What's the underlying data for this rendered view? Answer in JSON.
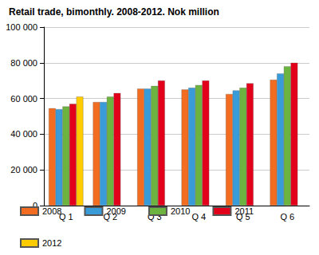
{
  "chart_data": {
    "type": "bar",
    "title": "Retail trade, bimonthly. 2008-2012. Nok million",
    "categories": [
      "Q 1",
      "Q 2",
      "Q 3",
      "Q 4",
      "Q 5",
      "Q 6"
    ],
    "series": [
      {
        "name": "2008",
        "color": "#f26d21",
        "values": [
          54500,
          58000,
          65500,
          65000,
          62500,
          70500
        ]
      },
      {
        "name": "2009",
        "color": "#3a9bd9",
        "values": [
          54000,
          58000,
          65500,
          66000,
          64500,
          74000
        ]
      },
      {
        "name": "2010",
        "color": "#6cb33f",
        "values": [
          55500,
          61000,
          67000,
          67500,
          66000,
          78000
        ]
      },
      {
        "name": "2011",
        "color": "#e3001b",
        "values": [
          57000,
          63000,
          70000,
          70000,
          68500,
          80000
        ]
      },
      {
        "name": "2012",
        "color": "#ffcc00",
        "values": [
          61000,
          null,
          null,
          null,
          null,
          null
        ]
      }
    ],
    "ylim": [
      0,
      100000
    ],
    "yticks": [
      0,
      {
        "value": 20000,
        "label": "20 000"
      },
      {
        "value": 40000,
        "label": "40 000"
      },
      {
        "value": 60000,
        "label": "60 000"
      },
      {
        "value": 80000,
        "label": "80 000"
      },
      {
        "value": 100000,
        "label": "100 000"
      }
    ],
    "grid": true,
    "legend": "bottom"
  }
}
